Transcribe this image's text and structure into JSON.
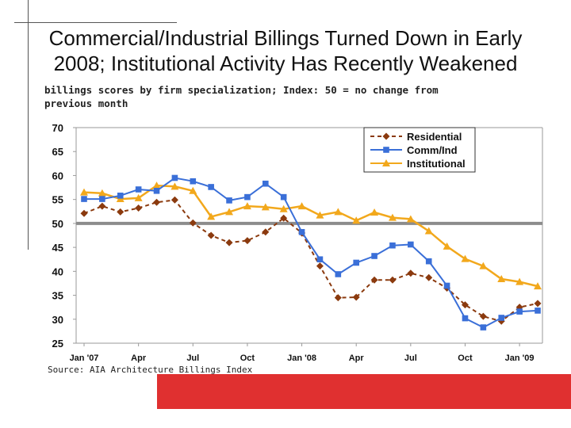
{
  "title_line1": "Commercial/Industrial Billings Turned Down in Early",
  "title_line2": "2008; Institutional Activity Has Recently Weakened",
  "subtitle_line1": "billings scores by firm specialization; Index: 50 = no change from",
  "subtitle_line2": "previous month",
  "source": "Source: AIA Architecture Billings Index",
  "colors": {
    "residential": "#8B3A0E",
    "comm_ind": "#3A6FD8",
    "institutional": "#F2A81C",
    "reference_line": "#8C8C8C",
    "accent_bar": "#E03030"
  },
  "chart_data": {
    "type": "line",
    "ylim": [
      25,
      70
    ],
    "yticks": [
      25,
      30,
      35,
      40,
      45,
      50,
      55,
      60,
      65,
      70
    ],
    "x_tick_labels": [
      "Jan '07",
      "Apr",
      "Jul",
      "Oct",
      "Jan '08",
      "Apr",
      "Jul",
      "Oct",
      "Jan '09"
    ],
    "x_tick_index": [
      0,
      3,
      6,
      9,
      12,
      15,
      18,
      21,
      24
    ],
    "reference_line": 50,
    "legend_position": "top-right",
    "grid": false,
    "series": [
      {
        "name": "Residential",
        "key": "residential",
        "marker": "diamond",
        "dashed": true,
        "values": [
          52.1,
          53.6,
          52.4,
          53.2,
          54.4,
          54.9,
          50.1,
          47.5,
          46,
          46.4,
          48.2,
          51.1,
          48,
          41.1,
          34.5,
          34.6,
          38.2,
          38.2,
          39.6,
          38.7,
          36.5,
          33,
          30.6,
          29.6,
          32.5,
          33.3
        ]
      },
      {
        "name": "Comm/Ind",
        "key": "comm_ind",
        "marker": "square",
        "dashed": false,
        "values": [
          55.1,
          55.1,
          55.8,
          57.1,
          56.8,
          59.5,
          58.8,
          57.6,
          54.8,
          55.5,
          58.3,
          55.5,
          48.2,
          42.5,
          39.4,
          41.8,
          43.2,
          45.4,
          45.6,
          42.1,
          37,
          30.2,
          28.3,
          30.3,
          31.6,
          31.8
        ]
      },
      {
        "name": "Institutional",
        "key": "institutional",
        "marker": "triangle",
        "dashed": false,
        "values": [
          56.5,
          56.3,
          55.1,
          55.3,
          57.9,
          57.7,
          56.8,
          51.4,
          52.4,
          53.6,
          53.4,
          53,
          53.6,
          51.7,
          52.4,
          50.6,
          52.3,
          51.2,
          50.9,
          48.4,
          45.2,
          42.6,
          41.1,
          38.4,
          37.8,
          36.9
        ]
      }
    ]
  }
}
